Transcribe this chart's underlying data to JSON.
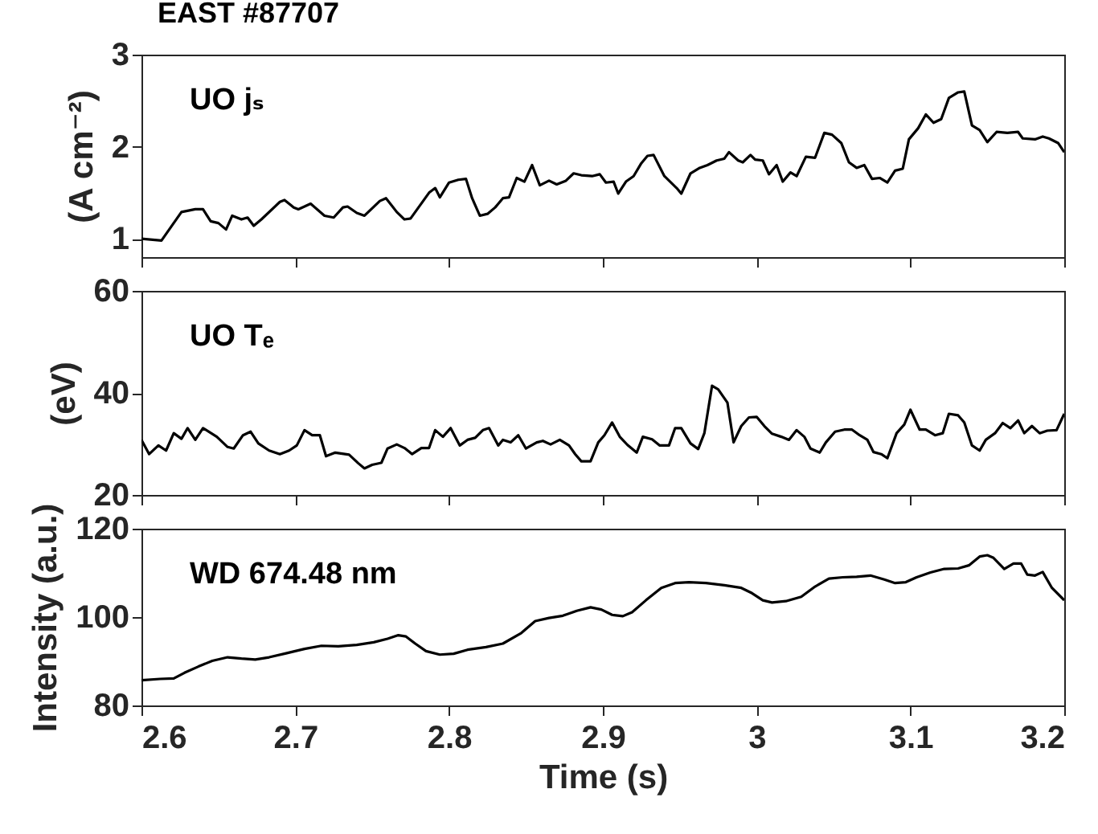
{
  "chart_data": [
    {
      "type": "line",
      "title": "EAST #87707",
      "ylabel": "(A cm⁻²)",
      "annotations": [
        "UO jₛ"
      ],
      "xlim": [
        2.6,
        3.2
      ],
      "xticks": [
        2.6,
        2.7,
        2.8,
        2.9,
        3,
        3.1,
        3.2
      ],
      "ylim": [
        0.8,
        3
      ],
      "yticks": [
        1,
        2,
        3
      ],
      "tick_labels": "y",
      "series": [
        {
          "color": "#000000",
          "x": [
            2.6,
            2.613,
            2.626,
            2.635,
            2.64,
            2.645,
            2.65,
            2.655,
            2.659,
            2.665,
            2.669,
            2.673,
            2.678,
            2.69,
            2.693,
            2.699,
            2.702,
            2.71,
            2.719,
            2.725,
            2.731,
            2.734,
            2.74,
            2.745,
            2.755,
            2.759,
            2.766,
            2.771,
            2.775,
            2.781,
            2.787,
            2.791,
            2.794,
            2.8,
            2.806,
            2.811,
            2.815,
            2.82,
            2.825,
            2.83,
            2.835,
            2.839,
            2.844,
            2.849,
            2.854,
            2.859,
            2.865,
            2.87,
            2.876,
            2.881,
            2.886,
            2.893,
            2.898,
            2.902,
            2.907,
            2.91,
            2.915,
            2.92,
            2.925,
            2.929,
            2.933,
            2.94,
            2.948,
            2.951,
            2.957,
            2.963,
            2.968,
            2.974,
            2.979,
            2.982,
            2.988,
            2.991,
            2.996,
            2.999,
            3.004,
            3.008,
            3.013,
            3.017,
            3.022,
            3.026,
            3.032,
            3.038,
            3.044,
            3.049,
            3.055,
            3.06,
            3.065,
            3.07,
            3.075,
            3.08,
            3.085,
            3.09,
            3.095,
            3.099,
            3.105,
            3.11,
            3.115,
            3.12,
            3.125,
            3.131,
            3.135,
            3.14,
            3.145,
            3.15,
            3.156,
            3.163,
            3.17,
            3.173,
            3.181,
            3.186,
            3.19,
            3.196,
            3.2
          ],
          "values": [
            1.0,
            0.98,
            1.29,
            1.32,
            1.32,
            1.19,
            1.17,
            1.1,
            1.25,
            1.21,
            1.23,
            1.14,
            1.21,
            1.4,
            1.42,
            1.34,
            1.32,
            1.38,
            1.25,
            1.23,
            1.34,
            1.35,
            1.28,
            1.25,
            1.41,
            1.44,
            1.29,
            1.21,
            1.22,
            1.36,
            1.5,
            1.55,
            1.45,
            1.61,
            1.64,
            1.65,
            1.44,
            1.25,
            1.27,
            1.34,
            1.44,
            1.45,
            1.66,
            1.62,
            1.8,
            1.58,
            1.63,
            1.59,
            1.63,
            1.71,
            1.69,
            1.68,
            1.7,
            1.61,
            1.62,
            1.49,
            1.62,
            1.68,
            1.82,
            1.9,
            1.91,
            1.68,
            1.55,
            1.49,
            1.71,
            1.77,
            1.8,
            1.85,
            1.87,
            1.94,
            1.85,
            1.83,
            1.91,
            1.86,
            1.85,
            1.7,
            1.8,
            1.62,
            1.72,
            1.68,
            1.89,
            1.88,
            2.15,
            2.13,
            2.04,
            1.83,
            1.77,
            1.8,
            1.65,
            1.66,
            1.61,
            1.74,
            1.76,
            2.08,
            2.2,
            2.35,
            2.26,
            2.3,
            2.53,
            2.59,
            2.6,
            2.23,
            2.18,
            2.05,
            2.16,
            2.15,
            2.16,
            2.09,
            2.08,
            2.11,
            2.09,
            2.04,
            1.94
          ]
        }
      ]
    },
    {
      "type": "line",
      "ylabel": "(eV)",
      "annotations": [
        "UO Tₑ"
      ],
      "xlim": [
        2.6,
        3.2
      ],
      "xticks": [
        2.6,
        2.7,
        2.8,
        2.9,
        3,
        3.1,
        3.2
      ],
      "ylim": [
        20,
        60
      ],
      "yticks": [
        20,
        40,
        60
      ],
      "tick_labels": "y",
      "series": [
        {
          "color": "#000000",
          "x": [
            2.6,
            2.605,
            2.611,
            2.616,
            2.621,
            2.626,
            2.63,
            2.635,
            2.64,
            2.649,
            2.656,
            2.66,
            2.666,
            2.671,
            2.676,
            2.683,
            2.69,
            2.696,
            2.701,
            2.706,
            2.711,
            2.716,
            2.72,
            2.726,
            2.735,
            2.741,
            2.745,
            2.75,
            2.756,
            2.76,
            2.766,
            2.771,
            2.776,
            2.782,
            2.787,
            2.791,
            2.796,
            2.801,
            2.807,
            2.812,
            2.817,
            2.822,
            2.826,
            2.832,
            2.835,
            2.84,
            2.845,
            2.85,
            2.857,
            2.861,
            2.866,
            2.872,
            2.878,
            2.882,
            2.886,
            2.892,
            2.897,
            2.901,
            2.906,
            2.911,
            2.916,
            2.922,
            2.926,
            2.932,
            2.937,
            2.943,
            2.947,
            2.951,
            2.957,
            2.962,
            2.966,
            2.971,
            2.975,
            2.981,
            2.985,
            2.99,
            2.995,
            3.0,
            3.005,
            3.01,
            3.016,
            3.021,
            3.026,
            3.031,
            3.035,
            3.041,
            3.045,
            3.051,
            3.057,
            3.062,
            3.067,
            3.072,
            3.076,
            3.081,
            3.085,
            3.091,
            3.096,
            3.1,
            3.106,
            3.11,
            3.116,
            3.121,
            3.125,
            3.131,
            3.135,
            3.14,
            3.145,
            3.149,
            3.155,
            3.16,
            3.165,
            3.17,
            3.174,
            3.179,
            3.184,
            3.189,
            3.195,
            3.2
          ],
          "values": [
            30.8,
            28.0,
            29.7,
            28.7,
            32.1,
            31.0,
            33.1,
            30.8,
            33.1,
            31.4,
            29.4,
            29.1,
            31.7,
            32.4,
            30.1,
            28.7,
            28.0,
            28.7,
            29.7,
            32.7,
            31.7,
            31.7,
            27.6,
            28.3,
            27.9,
            26.2,
            25.2,
            25.9,
            26.3,
            29.1,
            29.9,
            29.2,
            28.0,
            29.2,
            29.2,
            32.7,
            31.4,
            33.1,
            29.7,
            30.8,
            31.2,
            32.7,
            33.1,
            29.7,
            30.8,
            30.3,
            31.7,
            29.1,
            30.3,
            30.6,
            29.9,
            30.8,
            29.7,
            28.0,
            26.6,
            26.6,
            30.3,
            31.7,
            34.2,
            31.4,
            29.8,
            28.3,
            31.4,
            30.9,
            29.7,
            29.7,
            33.1,
            33.1,
            30.1,
            29.0,
            32.1,
            41.4,
            40.7,
            38.1,
            30.3,
            33.5,
            35.2,
            35.3,
            33.5,
            32.0,
            31.4,
            30.8,
            32.7,
            31.4,
            29.1,
            28.3,
            30.3,
            32.4,
            32.8,
            32.8,
            31.7,
            30.8,
            28.4,
            28.0,
            27.2,
            32.1,
            33.8,
            36.7,
            32.8,
            32.8,
            31.7,
            32.1,
            35.9,
            35.6,
            34.2,
            29.7,
            28.7,
            30.8,
            32.1,
            34.1,
            33.1,
            34.6,
            32.1,
            33.5,
            32.1,
            32.6,
            32.7,
            35.9
          ]
        }
      ]
    },
    {
      "type": "line",
      "xlabel": "Time (s)",
      "ylabel": "Intensity (a.u.)",
      "annotations": [
        "WD 674.48 nm"
      ],
      "xlim": [
        2.6,
        3.2
      ],
      "xticks": [
        2.6,
        2.7,
        2.8,
        2.9,
        3,
        3.1,
        3.2
      ],
      "ylim": [
        80,
        120
      ],
      "yticks": [
        80,
        100,
        120
      ],
      "series": [
        {
          "color": "#000000",
          "x": [
            2.6,
            2.612,
            2.621,
            2.628,
            2.637,
            2.646,
            2.656,
            2.665,
            2.674,
            2.683,
            2.694,
            2.706,
            2.717,
            2.728,
            2.74,
            2.751,
            2.76,
            2.767,
            2.772,
            2.778,
            2.785,
            2.794,
            2.803,
            2.812,
            2.824,
            2.835,
            2.847,
            2.856,
            2.865,
            2.874,
            2.883,
            2.892,
            2.899,
            2.906,
            2.913,
            2.919,
            2.928,
            2.938,
            2.947,
            2.956,
            2.967,
            2.979,
            2.99,
            2.997,
            3.004,
            3.01,
            3.019,
            3.029,
            3.038,
            3.047,
            3.056,
            3.065,
            3.074,
            3.083,
            3.09,
            3.097,
            3.104,
            3.113,
            3.122,
            3.131,
            3.138,
            3.145,
            3.15,
            3.154,
            3.161,
            3.167,
            3.172,
            3.176,
            3.181,
            3.186,
            3.192,
            3.2
          ],
          "values": [
            85.7,
            86.0,
            86.1,
            87.4,
            88.8,
            90.1,
            90.9,
            90.6,
            90.4,
            90.9,
            91.8,
            92.8,
            93.5,
            93.4,
            93.7,
            94.3,
            95.1,
            95.9,
            95.6,
            94.0,
            92.3,
            91.5,
            91.7,
            92.6,
            93.2,
            94.0,
            96.4,
            99.1,
            99.8,
            100.3,
            101.4,
            102.2,
            101.7,
            100.5,
            100.2,
            101.1,
            103.8,
            106.6,
            107.7,
            107.9,
            107.7,
            107.2,
            106.6,
            105.4,
            103.8,
            103.3,
            103.6,
            104.6,
            106.9,
            108.7,
            109.0,
            109.1,
            109.4,
            108.5,
            107.7,
            107.9,
            109.0,
            110.1,
            110.9,
            111.0,
            111.7,
            113.7,
            114.0,
            113.4,
            110.9,
            112.1,
            112.1,
            109.6,
            109.4,
            110.2,
            106.6,
            103.8
          ]
        }
      ]
    }
  ]
}
